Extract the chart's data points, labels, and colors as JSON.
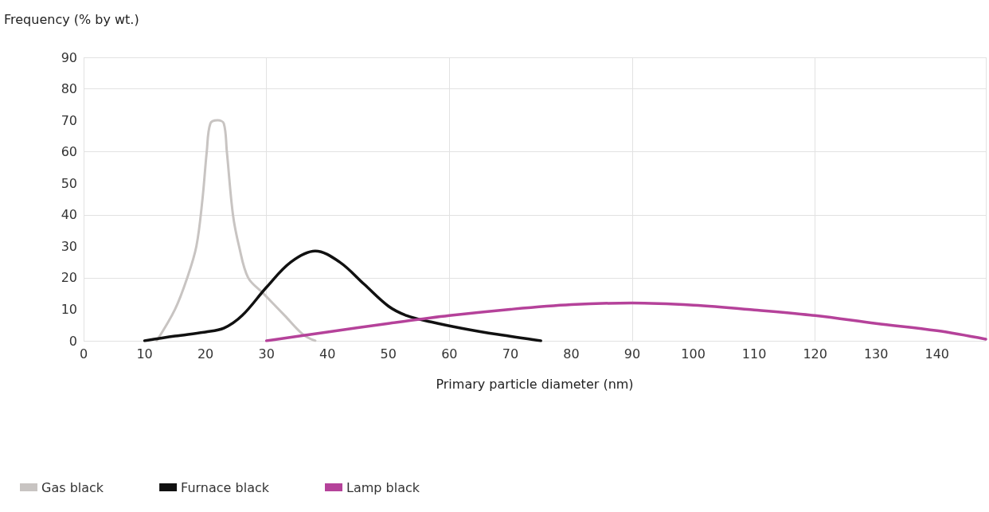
{
  "chart_data": {
    "type": "line",
    "xlabel": "Primary particle diameter (nm)",
    "ylabel": "Frequency (% by wt.)",
    "xlim": [
      0,
      148
    ],
    "xticks": [
      0,
      10,
      20,
      30,
      40,
      50,
      60,
      70,
      80,
      90,
      100,
      110,
      120,
      130,
      140
    ],
    "ylim": [
      0,
      90
    ],
    "yticks": [
      0,
      10,
      20,
      30,
      40,
      50,
      60,
      70,
      80,
      90
    ],
    "grid": true,
    "legend": "bottom left",
    "marker": "none",
    "line_style": "solid",
    "series": [
      {
        "name": "Gas black",
        "color": "#c8c4c2",
        "x": [
          12,
          15,
          17,
          18.5,
          19.5,
          20.2,
          20.8,
          22,
          23,
          23.5,
          24.5,
          25.5,
          27,
          29.5,
          33,
          36,
          38
        ],
        "values": [
          0,
          10,
          20,
          30,
          45,
          60,
          69,
          70,
          69,
          60,
          40,
          30,
          20,
          15,
          8,
          2,
          0
        ]
      },
      {
        "name": "Furnace black",
        "color": "#111111",
        "x": [
          10,
          15,
          20,
          23,
          26,
          30,
          34,
          38,
          42,
          46,
          50,
          53,
          57,
          62,
          68,
          75
        ],
        "values": [
          0,
          1.5,
          2.8,
          4,
          8,
          17,
          25,
          28.5,
          25,
          18,
          11,
          8,
          6,
          4,
          2,
          0
        ]
      },
      {
        "name": "Lamp black",
        "color": "#b5429a",
        "x": [
          30,
          40,
          50,
          60,
          70,
          80,
          90,
          100,
          110,
          120,
          130,
          140,
          148
        ],
        "values": [
          0,
          2.8,
          5.5,
          8,
          10,
          11.5,
          12,
          11.3,
          9.8,
          8,
          5.5,
          3.2,
          0.5
        ]
      }
    ]
  }
}
